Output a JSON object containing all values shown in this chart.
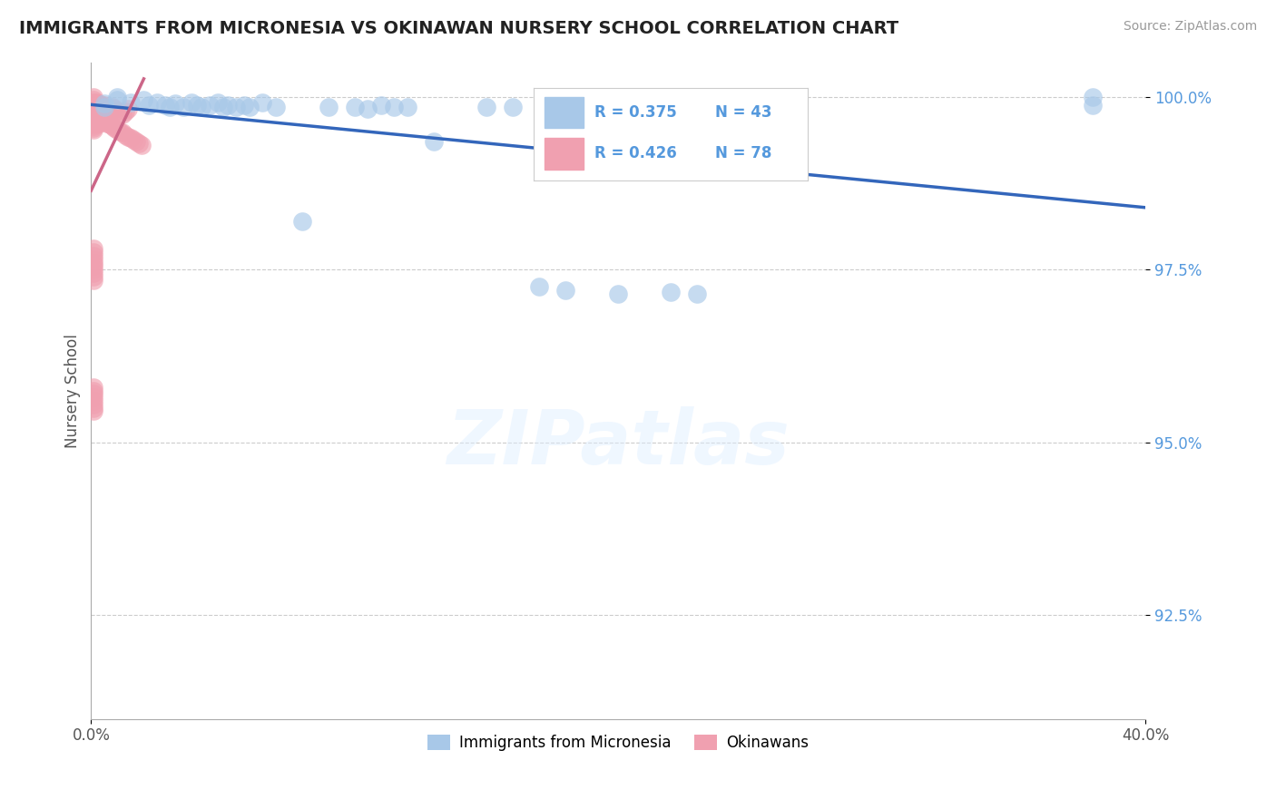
{
  "title": "IMMIGRANTS FROM MICRONESIA VS OKINAWAN NURSERY SCHOOL CORRELATION CHART",
  "source": "Source: ZipAtlas.com",
  "xlabel_legend1": "Immigrants from Micronesia",
  "xlabel_legend2": "Okinawans",
  "ylabel": "Nursery School",
  "xlim": [
    0.0,
    0.4
  ],
  "ylim": [
    0.91,
    1.005
  ],
  "xtick_positions": [
    0.0,
    0.4
  ],
  "xtick_labels": [
    "0.0%",
    "40.0%"
  ],
  "ytick_positions": [
    0.925,
    0.95,
    0.975,
    1.0
  ],
  "ytick_labels": [
    "92.5%",
    "95.0%",
    "97.5%",
    "100.0%"
  ],
  "legend_r1": "R = 0.375",
  "legend_n1": "N = 43",
  "legend_r2": "R = 0.426",
  "legend_n2": "N = 78",
  "color_blue": "#a8c8e8",
  "color_pink": "#f0a0b0",
  "color_blue_text": "#5599dd",
  "trendline_color": "#3366bb",
  "blue_dots": {
    "x": [
      0.005,
      0.005,
      0.01,
      0.01,
      0.015,
      0.02,
      0.022,
      0.025,
      0.028,
      0.03,
      0.032,
      0.035,
      0.038,
      0.04,
      0.042,
      0.045,
      0.048,
      0.05,
      0.052,
      0.055,
      0.058,
      0.06,
      0.065,
      0.07,
      0.08,
      0.09,
      0.1,
      0.105,
      0.11,
      0.115,
      0.12,
      0.13,
      0.15,
      0.16,
      0.17,
      0.18,
      0.2,
      0.21,
      0.22,
      0.23,
      0.26,
      0.38,
      0.38
    ],
    "y": [
      0.999,
      0.9985,
      1.0,
      0.9995,
      0.9992,
      0.9995,
      0.9988,
      0.9992,
      0.9988,
      0.9985,
      0.999,
      0.9985,
      0.9992,
      0.9988,
      0.9985,
      0.9988,
      0.9992,
      0.9985,
      0.9988,
      0.9985,
      0.9988,
      0.9985,
      0.9992,
      0.9985,
      0.982,
      0.9985,
      0.9985,
      0.9982,
      0.9988,
      0.9985,
      0.9985,
      0.9935,
      0.9985,
      0.9985,
      0.9725,
      0.972,
      0.9715,
      0.9985,
      0.9718,
      0.9715,
      0.9988,
      0.9988,
      1.0
    ]
  },
  "pink_dots": {
    "x": [
      0.001,
      0.001,
      0.001,
      0.001,
      0.001,
      0.001,
      0.001,
      0.001,
      0.001,
      0.001,
      0.002,
      0.002,
      0.002,
      0.002,
      0.003,
      0.003,
      0.003,
      0.004,
      0.004,
      0.005,
      0.005,
      0.006,
      0.007,
      0.008,
      0.009,
      0.01,
      0.011,
      0.012,
      0.013,
      0.014,
      0.001,
      0.001,
      0.001,
      0.001,
      0.001,
      0.001,
      0.001,
      0.001,
      0.001,
      0.001,
      0.002,
      0.002,
      0.003,
      0.003,
      0.004,
      0.005,
      0.006,
      0.007,
      0.008,
      0.009,
      0.01,
      0.011,
      0.012,
      0.013,
      0.014,
      0.015,
      0.016,
      0.017,
      0.018,
      0.019,
      0.001,
      0.001,
      0.001,
      0.001,
      0.001,
      0.001,
      0.001,
      0.001,
      0.001,
      0.001,
      0.001,
      0.001,
      0.001,
      0.001,
      0.001,
      0.001,
      0.001,
      0.001
    ],
    "y": [
      1.0,
      0.9995,
      0.9992,
      0.999,
      0.9988,
      0.9985,
      0.9982,
      0.998,
      0.9978,
      0.9975,
      0.9992,
      0.9988,
      0.9985,
      0.998,
      0.999,
      0.9985,
      0.998,
      0.9988,
      0.9985,
      0.9988,
      0.9985,
      0.9982,
      0.998,
      0.9985,
      0.9982,
      0.998,
      0.9978,
      0.9975,
      0.9978,
      0.9982,
      0.9975,
      0.9972,
      0.997,
      0.9968,
      0.9965,
      0.9962,
      0.996,
      0.9958,
      0.9955,
      0.9952,
      0.997,
      0.9968,
      0.9965,
      0.9962,
      0.9968,
      0.9965,
      0.9962,
      0.996,
      0.9958,
      0.9955,
      0.9952,
      0.995,
      0.9948,
      0.9945,
      0.9942,
      0.994,
      0.9938,
      0.9935,
      0.9932,
      0.993,
      0.978,
      0.9775,
      0.977,
      0.9765,
      0.976,
      0.9755,
      0.975,
      0.9745,
      0.974,
      0.9735,
      0.958,
      0.9575,
      0.957,
      0.9565,
      0.956,
      0.9555,
      0.955,
      0.9545
    ]
  }
}
